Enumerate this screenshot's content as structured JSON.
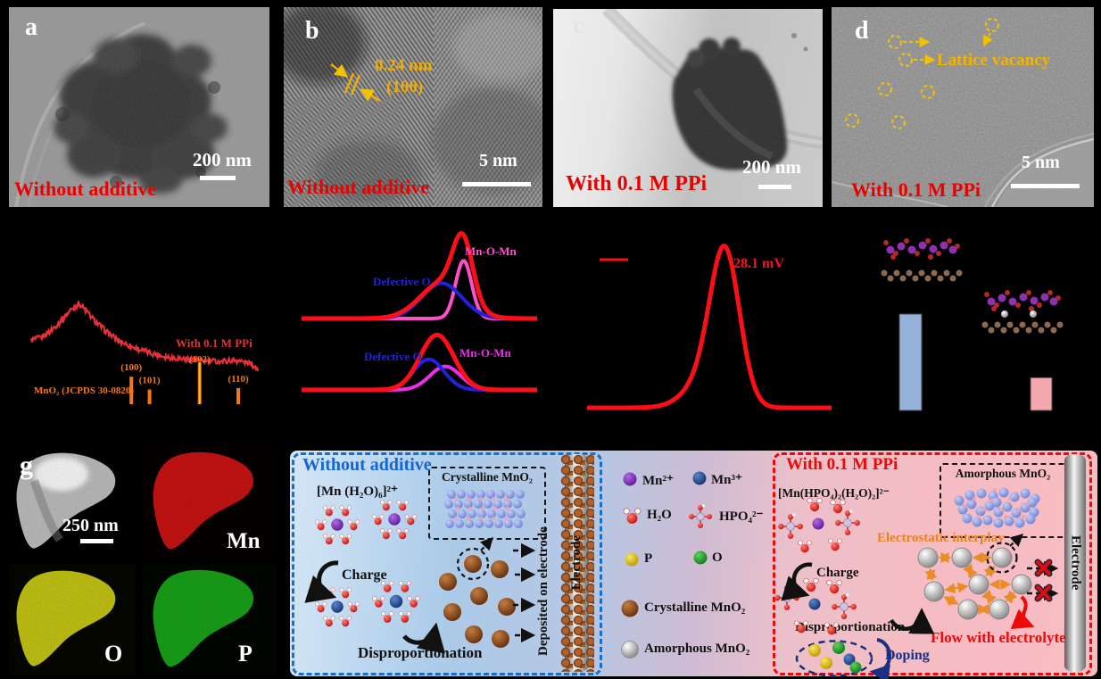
{
  "panels": {
    "a": {
      "letter": "a",
      "scale": "200 nm",
      "caption": "Without additive"
    },
    "b": {
      "letter": "b",
      "d_spacing": "0.24 nm",
      "plane": "(100)",
      "scale": "5 nm",
      "caption": "Without additive"
    },
    "c": {
      "letter": "c",
      "scale": "200 nm",
      "caption": "With 0.1 M PPi"
    },
    "d": {
      "letter": "d",
      "annotation": "Lattice vacancy",
      "scale": "5 nm",
      "caption": "With 0.1 M PPi"
    },
    "g": {
      "letter": "g",
      "scale": "250 nm",
      "mn": "Mn",
      "o": "O",
      "p": "P"
    }
  },
  "chart_data": [
    {
      "id": "xrd",
      "type": "line",
      "series": [
        {
          "name": "With 0.1 M PPi",
          "color": "#e63038",
          "noise": true,
          "points": [
            [
              0,
              0.6
            ],
            [
              0.04,
              0.62
            ],
            [
              0.08,
              0.68
            ],
            [
              0.13,
              0.78
            ],
            [
              0.17,
              0.88
            ],
            [
              0.21,
              0.95
            ],
            [
              0.24,
              0.88
            ],
            [
              0.28,
              0.78
            ],
            [
              0.33,
              0.68
            ],
            [
              0.38,
              0.6
            ],
            [
              0.45,
              0.53
            ],
            [
              0.52,
              0.48
            ],
            [
              0.6,
              0.44
            ],
            [
              0.68,
              0.42
            ],
            [
              0.76,
              0.4
            ],
            [
              0.84,
              0.4
            ],
            [
              0.9,
              0.41
            ],
            [
              0.96,
              0.38
            ],
            [
              1.0,
              0.33
            ]
          ]
        }
      ],
      "reference": {
        "label": "MnO₂ (JCPDS 30-0820)",
        "color": "#f07818",
        "peaks": [
          {
            "label": "(100)",
            "x": 0.44,
            "h": 0.56
          },
          {
            "label": "(101)",
            "x": 0.52,
            "h": 0.3
          },
          {
            "label": "(102)",
            "x": 0.74,
            "h": 0.85
          },
          {
            "label": "(110)",
            "x": 0.91,
            "h": 0.33
          }
        ]
      }
    },
    {
      "id": "xps",
      "type": "line",
      "subplots": [
        {
          "curves": [
            {
              "name": "envelope",
              "color": "#ff0e18",
              "width": 5,
              "g": [
                {
                  "c": 0.6,
                  "w": 0.095,
                  "h": 0.45
                },
                {
                  "c": 0.685,
                  "w": 0.042,
                  "h": 0.75
                }
              ]
            },
            {
              "name": "Defective O",
              "color": "#2222dd",
              "width": 4,
              "g": [
                {
                  "c": 0.595,
                  "w": 0.085,
                  "h": 0.44
                }
              ]
            },
            {
              "name": "Mn-O-Mn",
              "color": "#ff50c8",
              "width": 4,
              "g": [
                {
                  "c": 0.688,
                  "w": 0.034,
                  "h": 0.72
                }
              ]
            }
          ]
        },
        {
          "curves": [
            {
              "name": "envelope",
              "color": "#ff0e18",
              "width": 5,
              "g": [
                {
                  "c": 0.575,
                  "w": 0.072,
                  "h": 0.7
                }
              ]
            },
            {
              "name": "Defective O",
              "color": "#2222dd",
              "width": 4,
              "g": [
                {
                  "c": 0.54,
                  "w": 0.065,
                  "h": 0.39
                }
              ]
            },
            {
              "name": "Mn-O-Mn",
              "color": "#e830e8",
              "width": 4,
              "g": [
                {
                  "c": 0.61,
                  "w": 0.065,
                  "h": 0.3
                }
              ]
            }
          ]
        }
      ]
    },
    {
      "id": "zeta",
      "type": "line",
      "annotation": "28.1 mV",
      "annotation_color": "#ff0e18",
      "curves": [
        {
          "color": "#ff0e18",
          "width": 5,
          "g": [
            {
              "c": 0.565,
              "w": 0.06,
              "h": 0.93
            },
            {
              "c": 0.49,
              "w": 0.085,
              "h": 0.18
            }
          ]
        }
      ]
    },
    {
      "id": "dft",
      "type": "bar",
      "values": [
        1.0,
        0.34
      ],
      "colors": [
        "#94b2da",
        "#f4a8b0"
      ]
    }
  ],
  "schematic": {
    "left": {
      "title": "Without additive",
      "precursor": "[Mn (H₂O)₆]²⁺",
      "charge": "Charge",
      "reaction": "Disproportionation",
      "box": "Crystalline MnO₂",
      "deposited": "Deposited on electrode",
      "electrode": "Electrode"
    },
    "legend": {
      "mn2": "Mn²⁺",
      "mn3": "Mn³⁺",
      "h2o": "H₂O",
      "hpo4": "HPO₄²⁻",
      "p": "P",
      "o": "O",
      "crystalline": "Crystalline MnO₂",
      "amorphous": "Amorphous MnO₂"
    },
    "right": {
      "title": "With 0.1 M PPi",
      "precursor": "[Mn(HPO₄)₂(H₂O)₂]²⁻",
      "charge": "Charge",
      "reaction": "Disproportionation",
      "doping": "Doping",
      "interplay": "Electrostatic interplay",
      "box": "Amorphous MnO₂",
      "flow": "Flow with electrolyte",
      "electrode": "Electrode"
    }
  },
  "colors": {
    "caption_red": "#e90000",
    "annotation_gold": "#f0ad00",
    "title_blue": "#1565d4",
    "title_red": "#ee0808",
    "interplay_orange": "#e8821e",
    "doping_navy": "#1a2f80"
  }
}
